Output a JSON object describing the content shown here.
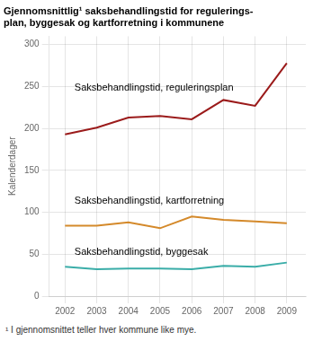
{
  "chart_data": {
    "type": "line",
    "title": [
      "Gjennomsnittlig¹ saksbehandlingstid for regulerings-",
      "plan, byggesak og kartforretning i kommunene"
    ],
    "ylabel": "Kalenderdager",
    "footnote": "¹ I gjennomsnittet teller hver kommune like mye.",
    "x": [
      2002,
      2003,
      2004,
      2005,
      2006,
      2007,
      2008,
      2009
    ],
    "series": [
      {
        "name": "Saksbehandlingstid, reguleringsplan",
        "color": "#9B1B1B",
        "values": [
          193,
          201,
          213,
          215,
          211,
          234,
          227,
          278
        ]
      },
      {
        "name": "Saksbehandlingstid, kartforretning",
        "color": "#D4892A",
        "values": [
          84,
          84,
          88,
          81,
          95,
          91,
          89,
          87
        ]
      },
      {
        "name": "Saksbehandlingstid, byggesak",
        "color": "#3AADA8",
        "values": [
          35,
          32,
          33,
          33,
          32,
          36,
          35,
          40
        ]
      }
    ],
    "annotations": [
      {
        "text": "Saksbehandlingstid, reguleringsplan",
        "x": 2002.3,
        "y": 248
      },
      {
        "text": "Saksbehandlingstid, kartforretning",
        "x": 2002.3,
        "y": 113
      },
      {
        "text": "Saksbehandlingstid, byggesak",
        "x": 2002.3,
        "y": 53
      }
    ],
    "xlim": [
      2001.5,
      2009.6
    ],
    "xticks": [
      2002,
      2003,
      2004,
      2005,
      2006,
      2007,
      2008,
      2009
    ],
    "ylim": [
      0,
      310
    ],
    "yticks": [
      0,
      50,
      100,
      150,
      200,
      250,
      300
    ],
    "grid": true,
    "legend": "none"
  }
}
